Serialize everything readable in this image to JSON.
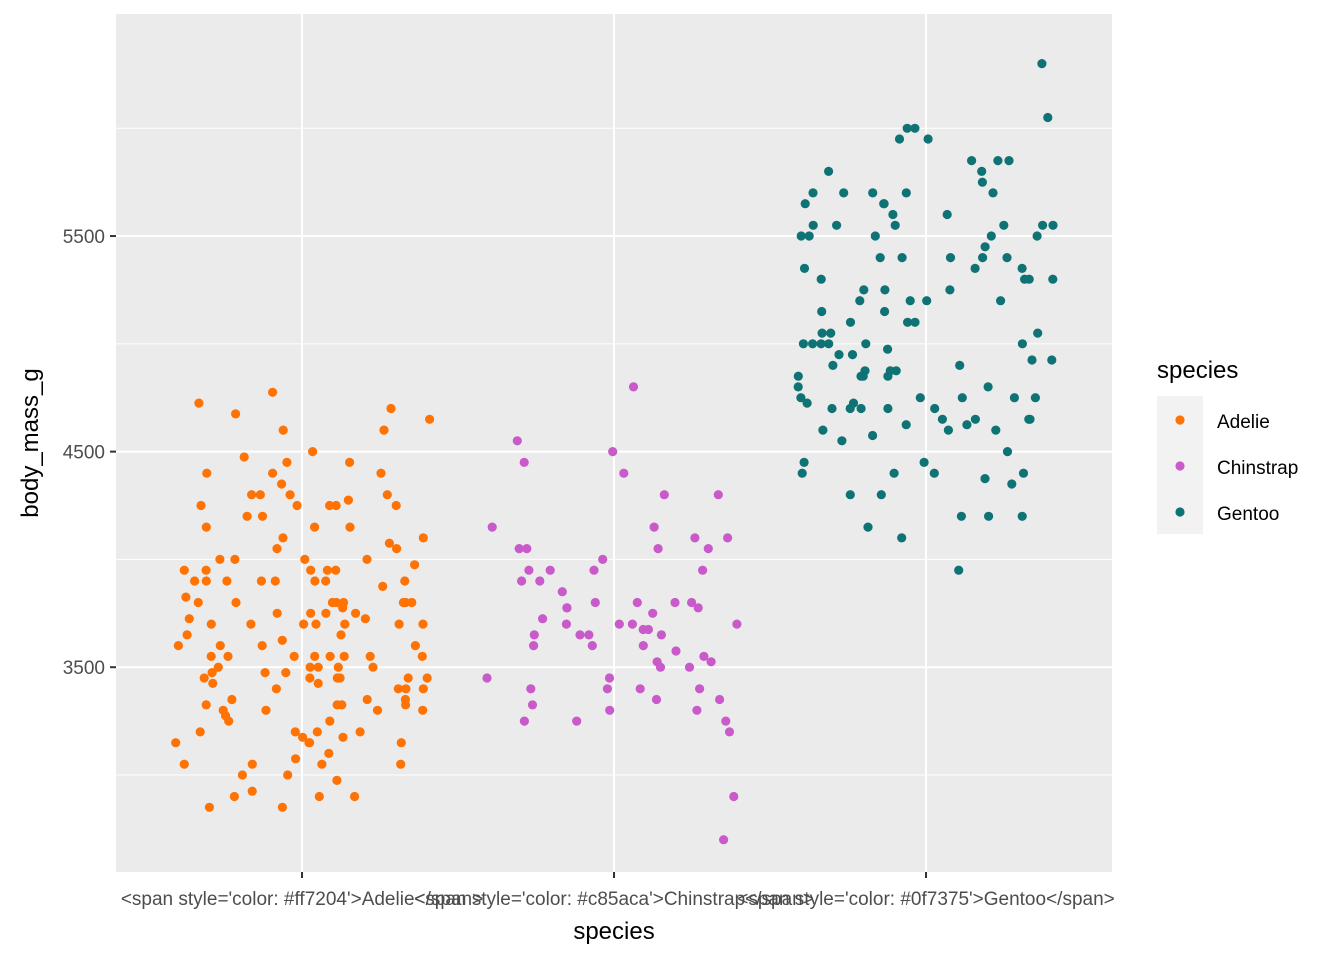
{
  "chart_data": {
    "type": "scatter",
    "title": "",
    "xlabel": "species",
    "ylabel": "body_mass_g",
    "x_tick_labels": [
      "<span style='color: #ff7204'>Adelie</span>",
      "<span style='color: #c85aca'>Chinstrap</span>",
      "<span style='color: #0f7375'>Gentoo</span>"
    ],
    "y_ticks": [
      3500,
      4500,
      5500
    ],
    "ylim": [
      2550,
      6530
    ],
    "grid": true,
    "legend": {
      "title": "species",
      "position": "right",
      "entries": [
        "Adelie",
        "Chinstrap",
        "Gentoo"
      ]
    },
    "series": [
      {
        "name": "Adelie",
        "color": "#ff7204",
        "x": "Adelie",
        "values": [
          3750,
          3800,
          3250,
          3450,
          3650,
          3625,
          4675,
          3475,
          4250,
          3300,
          3700,
          3200,
          3800,
          4400,
          3700,
          3450,
          4500,
          3325,
          4200,
          3400,
          3600,
          3800,
          3950,
          3800,
          3800,
          3550,
          3200,
          3150,
          3950,
          3250,
          3900,
          3300,
          3900,
          3325,
          4150,
          3950,
          3550,
          3300,
          4650,
          3150,
          3900,
          3100,
          4400,
          3000,
          4600,
          3425,
          2975,
          3450,
          4150,
          3500,
          4300,
          3450,
          4050,
          2900,
          3700,
          3550,
          3800,
          2850,
          3750,
          3150,
          4400,
          3600,
          4050,
          2850,
          3950,
          3350,
          4100,
          3050,
          4450,
          3600,
          3900,
          3550,
          4150,
          3700,
          4250,
          3700,
          3900,
          3550,
          4000,
          3200,
          4700,
          3800,
          4200,
          3350,
          3550,
          3800,
          3500,
          3950,
          3600,
          3550,
          4300,
          3400,
          4450,
          3300,
          4300,
          3700,
          4350,
          2900,
          4100,
          3725,
          4725,
          3075,
          4250,
          2925,
          3550,
          3750,
          3900,
          3175,
          4775,
          3825,
          4600,
          3200,
          4275,
          3900,
          4075,
          2900,
          3775,
          3350,
          3325,
          3150,
          3500,
          3450,
          3875,
          3050,
          4000,
          3275,
          4300,
          3050,
          4000,
          3325,
          3500,
          3500,
          4475,
          3425,
          3900,
          3175,
          3975,
          3400,
          4250,
          3400,
          3475,
          3050,
          3725,
          3000,
          3650,
          4250,
          3475,
          3450,
          3750,
          3700,
          4000
        ]
      },
      {
        "name": "Chinstrap",
        "color": "#c85aca",
        "x": "Chinstrap",
        "values": [
          3500,
          3900,
          3650,
          3525,
          3725,
          3950,
          3250,
          3750,
          4150,
          3700,
          3800,
          3775,
          3700,
          4050,
          3575,
          4050,
          3300,
          3700,
          3450,
          4400,
          3600,
          3400,
          2900,
          3800,
          3300,
          4150,
          3400,
          3800,
          3700,
          4550,
          3200,
          4300,
          3350,
          4100,
          3600,
          3900,
          3850,
          4800,
          2700,
          4500,
          3950,
          3650,
          3550,
          3500,
          3675,
          4450,
          3400,
          4300,
          3250,
          3675,
          3325,
          3950,
          3600,
          4050,
          3350,
          3450,
          3250,
          4050,
          3800,
          3525,
          3950,
          3650,
          3650,
          4000,
          3400,
          3775,
          4100,
          3775
        ]
      },
      {
        "name": "Gentoo",
        "color": "#0f7375",
        "x": "Gentoo",
        "values": [
          4500,
          5700,
          4450,
          5700,
          5400,
          4550,
          4800,
          5200,
          4400,
          5150,
          4650,
          5550,
          4650,
          5850,
          4200,
          5850,
          4150,
          6300,
          4800,
          5350,
          5700,
          5000,
          4400,
          5050,
          5000,
          5100,
          4100,
          5650,
          4600,
          5550,
          5250,
          4700,
          5050,
          6050,
          5150,
          5400,
          4950,
          5250,
          4350,
          5350,
          3950,
          5700,
          4300,
          4750,
          5550,
          4900,
          4200,
          5400,
          5100,
          5300,
          4850,
          5300,
          4400,
          5000,
          4900,
          5050,
          4300,
          5000,
          4450,
          5550,
          4200,
          5300,
          4400,
          5650,
          4700,
          5700,
          4650,
          5800,
          4700,
          5550,
          4750,
          5000,
          5100,
          5200,
          4700,
          5800,
          4600,
          6000,
          4750,
          5950,
          4625,
          5450,
          4725,
          5350,
          4750,
          5600,
          4600,
          5300,
          4875,
          5550,
          4950,
          5400,
          4750,
          5650,
          4850,
          5200,
          4925,
          4875,
          4625,
          5250,
          4850,
          5600,
          4975,
          5500,
          4725,
          5500,
          4700,
          5500,
          4575,
          5500,
          5000,
          5950,
          4650,
          5500,
          4375,
          5850,
          4875,
          6000,
          4925,
          4850,
          5750,
          5200,
          5400
        ]
      }
    ]
  }
}
